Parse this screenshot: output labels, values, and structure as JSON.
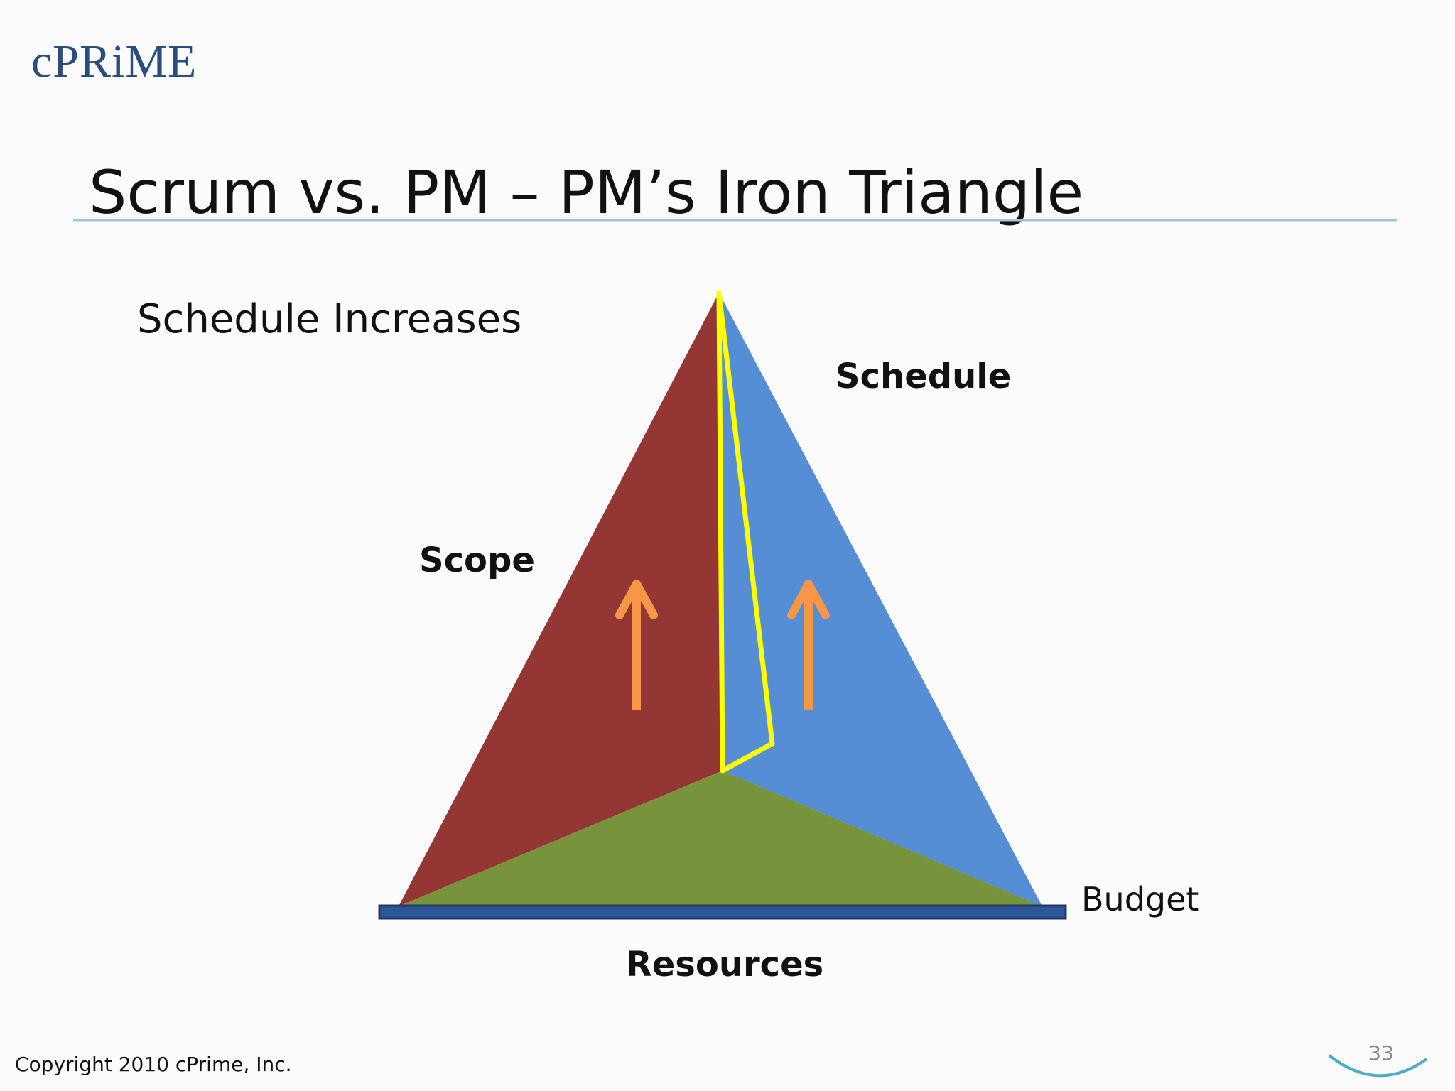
{
  "logo": "cPRiME",
  "title": "Scrum vs. PM – PM’s Iron Triangle",
  "subtitle": "Schedule Increases",
  "diagram": {
    "labels": {
      "schedule": "Schedule",
      "scope": "Scope",
      "budget": "Budget",
      "resources": "Resources"
    }
  },
  "footer": {
    "copyright": "Copyright 2010 cPrime, Inc.",
    "page_number": "33"
  }
}
